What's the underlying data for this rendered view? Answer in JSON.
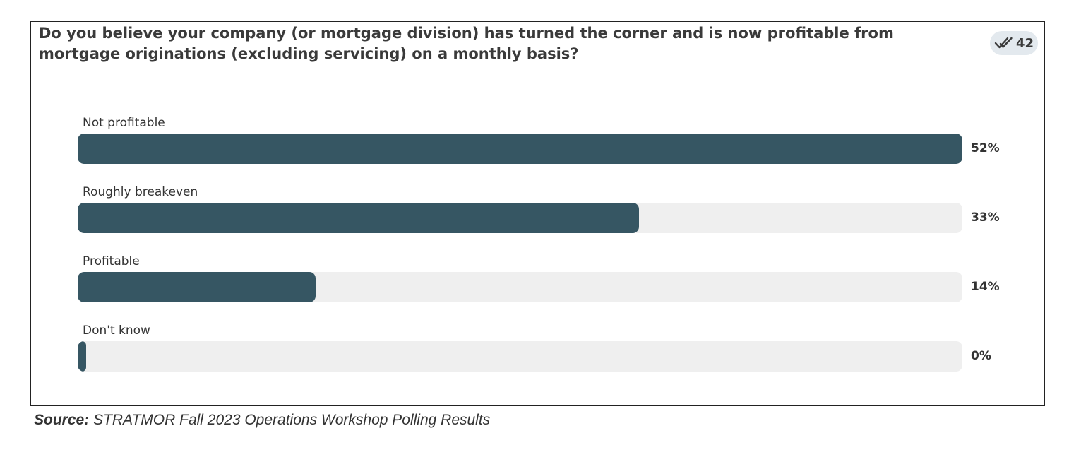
{
  "poll": {
    "question": "Do you believe your company (or mortgage division) has turned the corner and is now profitable from mortgage originations (excluding servicing) on a monthly basis?",
    "responses_icon": "double-check-icon",
    "responses_count": "42"
  },
  "chart_data": {
    "type": "bar",
    "orientation": "horizontal",
    "title": "Do you believe your company (or mortgage division) has turned the corner and is now profitable from mortgage originations (excluding servicing) on a monthly basis?",
    "categories": [
      "Not profitable",
      "Roughly breakeven",
      "Profitable",
      "Don't know"
    ],
    "values": [
      52,
      33,
      14,
      0
    ],
    "value_labels": [
      "52%",
      "33%",
      "14%",
      "0%"
    ],
    "unit": "%",
    "xlim": [
      0,
      52
    ],
    "grid": false,
    "legend": "none"
  },
  "colors": {
    "bar_fill": "#365663",
    "bar_track": "#efefef",
    "badge_background": "#e3e9ee",
    "text": "#333333"
  },
  "source": {
    "label": "Source:",
    "text": " STRATMOR Fall 2023 Operations Workshop Polling Results"
  }
}
